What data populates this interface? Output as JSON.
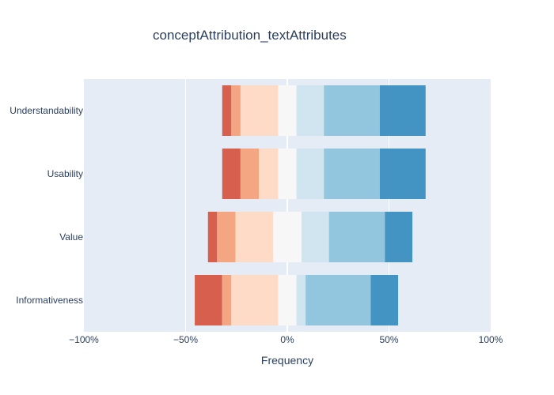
{
  "chart_data": {
    "type": "bar",
    "orientation": "horizontal",
    "stacked": "diverging",
    "title": "conceptAttribution_textAttributes",
    "xlabel": "Frequency",
    "ylabel": "",
    "xlim": [
      -100,
      100
    ],
    "x_ticks": [
      {
        "value": -100,
        "label": "−100%"
      },
      {
        "value": -50,
        "label": "−50%"
      },
      {
        "value": 0,
        "label": "0%"
      },
      {
        "value": 50,
        "label": "50%"
      },
      {
        "value": 100,
        "label": "100%"
      }
    ],
    "grid": true,
    "legend": "none",
    "categories": [
      "Understandability",
      "Usability",
      "Value",
      "Informativeness"
    ],
    "series": [
      {
        "color": "#d6604d",
        "values": [
          [
            -32,
            -27.5
          ],
          [
            -32,
            -23
          ],
          [
            -39,
            -34.5
          ],
          [
            -45.5,
            -32
          ]
        ]
      },
      {
        "color": "#f4a582",
        "values": [
          [
            -27.5,
            -23
          ],
          [
            -23,
            -14
          ],
          [
            -34.5,
            -25.5
          ],
          [
            -32,
            -27.5
          ]
        ]
      },
      {
        "color": "#fddbc7",
        "values": [
          [
            -23,
            -4.5
          ],
          [
            -14,
            -4.5
          ],
          [
            -25.5,
            -7
          ],
          [
            -27.5,
            -4.5
          ]
        ]
      },
      {
        "color": "#f7f7f7",
        "values": [
          [
            -4.5,
            4.5
          ],
          [
            -4.5,
            4.5
          ],
          [
            -7,
            7
          ],
          [
            -4.5,
            4.5
          ]
        ]
      },
      {
        "color": "#d1e5f0",
        "values": [
          [
            4.5,
            18
          ],
          [
            4.5,
            18
          ],
          [
            7,
            20.5
          ],
          [
            4.5,
            9
          ]
        ]
      },
      {
        "color": "#92c5de",
        "values": [
          [
            18,
            45.5
          ],
          [
            18,
            45.5
          ],
          [
            20.5,
            48
          ],
          [
            9,
            41
          ]
        ]
      },
      {
        "color": "#4393c3",
        "values": [
          [
            45.5,
            68
          ],
          [
            45.5,
            68
          ],
          [
            48,
            61.5
          ],
          [
            41,
            54.5
          ]
        ]
      }
    ]
  }
}
